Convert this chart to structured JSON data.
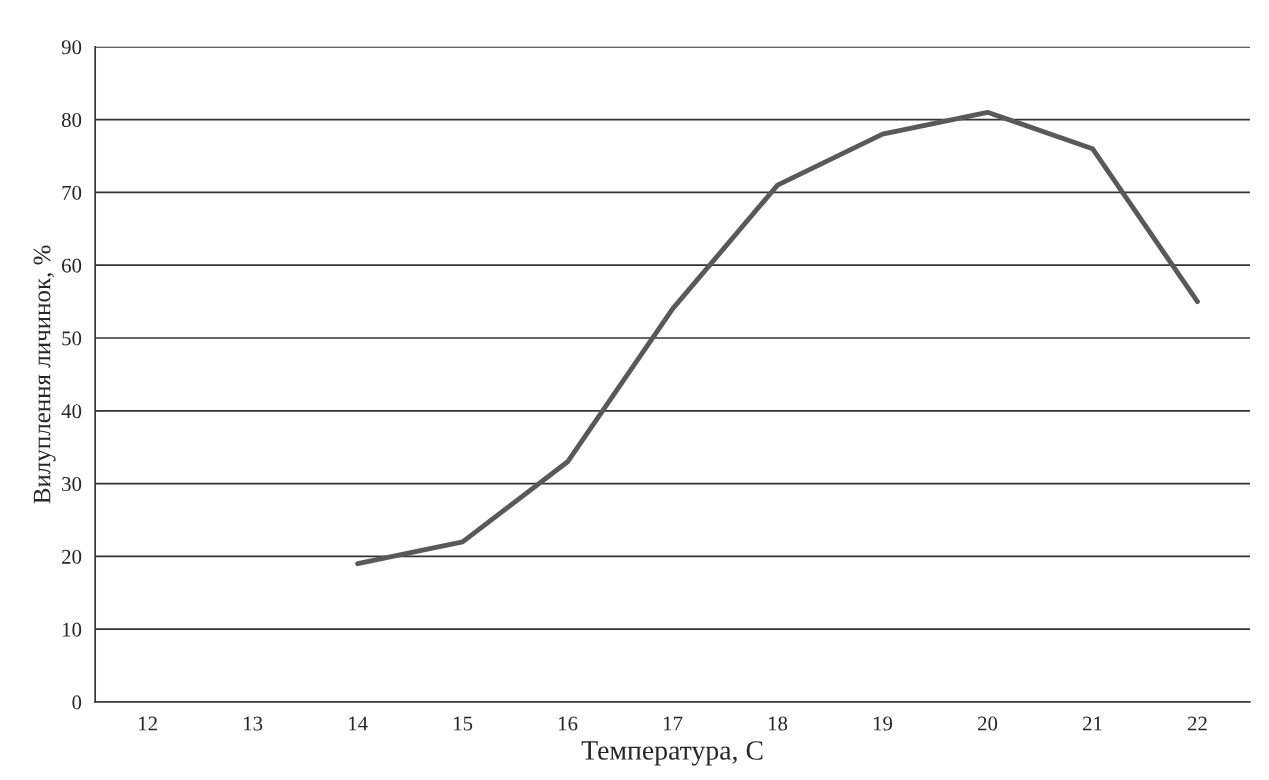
{
  "chart_data": {
    "type": "line",
    "xlabel": "Температура, С",
    "ylabel": "Вилуплення личинок, %",
    "categories": [
      "12",
      "13",
      "14",
      "15",
      "16",
      "17",
      "18",
      "19",
      "20",
      "21",
      "22"
    ],
    "series": [
      {
        "color": "#595959",
        "values": [
          null,
          null,
          19,
          22,
          33,
          54,
          71,
          78,
          81,
          76,
          55
        ]
      }
    ],
    "ylim": [
      0,
      90
    ],
    "yticks": [
      0,
      10,
      20,
      30,
      40,
      50,
      60,
      70,
      80,
      90
    ],
    "grid": "y",
    "line_style": "solid"
  }
}
